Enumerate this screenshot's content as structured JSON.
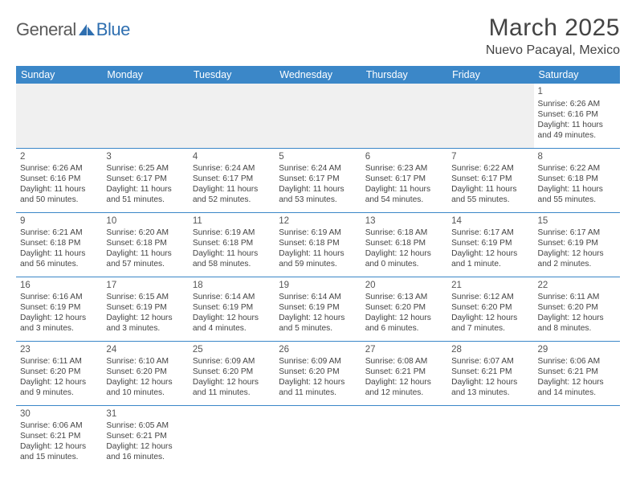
{
  "logo": {
    "text_general": "General",
    "text_blue": "Blue",
    "sail_color": "#2f6fb0"
  },
  "header": {
    "month_title": "March 2025",
    "location": "Nuevo Pacayal, Mexico"
  },
  "colors": {
    "header_bg": "#3b87c8",
    "header_text": "#ffffff",
    "row_border": "#3b87c8",
    "blank_row_bg": "#f0f0f0",
    "body_text": "#444444"
  },
  "weekdays": [
    "Sunday",
    "Monday",
    "Tuesday",
    "Wednesday",
    "Thursday",
    "Friday",
    "Saturday"
  ],
  "weeks": [
    [
      null,
      null,
      null,
      null,
      null,
      null,
      {
        "day": "1",
        "sunrise": "Sunrise: 6:26 AM",
        "sunset": "Sunset: 6:16 PM",
        "daylight": "Daylight: 11 hours and 49 minutes."
      }
    ],
    [
      {
        "day": "2",
        "sunrise": "Sunrise: 6:26 AM",
        "sunset": "Sunset: 6:16 PM",
        "daylight": "Daylight: 11 hours and 50 minutes."
      },
      {
        "day": "3",
        "sunrise": "Sunrise: 6:25 AM",
        "sunset": "Sunset: 6:17 PM",
        "daylight": "Daylight: 11 hours and 51 minutes."
      },
      {
        "day": "4",
        "sunrise": "Sunrise: 6:24 AM",
        "sunset": "Sunset: 6:17 PM",
        "daylight": "Daylight: 11 hours and 52 minutes."
      },
      {
        "day": "5",
        "sunrise": "Sunrise: 6:24 AM",
        "sunset": "Sunset: 6:17 PM",
        "daylight": "Daylight: 11 hours and 53 minutes."
      },
      {
        "day": "6",
        "sunrise": "Sunrise: 6:23 AM",
        "sunset": "Sunset: 6:17 PM",
        "daylight": "Daylight: 11 hours and 54 minutes."
      },
      {
        "day": "7",
        "sunrise": "Sunrise: 6:22 AM",
        "sunset": "Sunset: 6:17 PM",
        "daylight": "Daylight: 11 hours and 55 minutes."
      },
      {
        "day": "8",
        "sunrise": "Sunrise: 6:22 AM",
        "sunset": "Sunset: 6:18 PM",
        "daylight": "Daylight: 11 hours and 55 minutes."
      }
    ],
    [
      {
        "day": "9",
        "sunrise": "Sunrise: 6:21 AM",
        "sunset": "Sunset: 6:18 PM",
        "daylight": "Daylight: 11 hours and 56 minutes."
      },
      {
        "day": "10",
        "sunrise": "Sunrise: 6:20 AM",
        "sunset": "Sunset: 6:18 PM",
        "daylight": "Daylight: 11 hours and 57 minutes."
      },
      {
        "day": "11",
        "sunrise": "Sunrise: 6:19 AM",
        "sunset": "Sunset: 6:18 PM",
        "daylight": "Daylight: 11 hours and 58 minutes."
      },
      {
        "day": "12",
        "sunrise": "Sunrise: 6:19 AM",
        "sunset": "Sunset: 6:18 PM",
        "daylight": "Daylight: 11 hours and 59 minutes."
      },
      {
        "day": "13",
        "sunrise": "Sunrise: 6:18 AM",
        "sunset": "Sunset: 6:18 PM",
        "daylight": "Daylight: 12 hours and 0 minutes."
      },
      {
        "day": "14",
        "sunrise": "Sunrise: 6:17 AM",
        "sunset": "Sunset: 6:19 PM",
        "daylight": "Daylight: 12 hours and 1 minute."
      },
      {
        "day": "15",
        "sunrise": "Sunrise: 6:17 AM",
        "sunset": "Sunset: 6:19 PM",
        "daylight": "Daylight: 12 hours and 2 minutes."
      }
    ],
    [
      {
        "day": "16",
        "sunrise": "Sunrise: 6:16 AM",
        "sunset": "Sunset: 6:19 PM",
        "daylight": "Daylight: 12 hours and 3 minutes."
      },
      {
        "day": "17",
        "sunrise": "Sunrise: 6:15 AM",
        "sunset": "Sunset: 6:19 PM",
        "daylight": "Daylight: 12 hours and 3 minutes."
      },
      {
        "day": "18",
        "sunrise": "Sunrise: 6:14 AM",
        "sunset": "Sunset: 6:19 PM",
        "daylight": "Daylight: 12 hours and 4 minutes."
      },
      {
        "day": "19",
        "sunrise": "Sunrise: 6:14 AM",
        "sunset": "Sunset: 6:19 PM",
        "daylight": "Daylight: 12 hours and 5 minutes."
      },
      {
        "day": "20",
        "sunrise": "Sunrise: 6:13 AM",
        "sunset": "Sunset: 6:20 PM",
        "daylight": "Daylight: 12 hours and 6 minutes."
      },
      {
        "day": "21",
        "sunrise": "Sunrise: 6:12 AM",
        "sunset": "Sunset: 6:20 PM",
        "daylight": "Daylight: 12 hours and 7 minutes."
      },
      {
        "day": "22",
        "sunrise": "Sunrise: 6:11 AM",
        "sunset": "Sunset: 6:20 PM",
        "daylight": "Daylight: 12 hours and 8 minutes."
      }
    ],
    [
      {
        "day": "23",
        "sunrise": "Sunrise: 6:11 AM",
        "sunset": "Sunset: 6:20 PM",
        "daylight": "Daylight: 12 hours and 9 minutes."
      },
      {
        "day": "24",
        "sunrise": "Sunrise: 6:10 AM",
        "sunset": "Sunset: 6:20 PM",
        "daylight": "Daylight: 12 hours and 10 minutes."
      },
      {
        "day": "25",
        "sunrise": "Sunrise: 6:09 AM",
        "sunset": "Sunset: 6:20 PM",
        "daylight": "Daylight: 12 hours and 11 minutes."
      },
      {
        "day": "26",
        "sunrise": "Sunrise: 6:09 AM",
        "sunset": "Sunset: 6:20 PM",
        "daylight": "Daylight: 12 hours and 11 minutes."
      },
      {
        "day": "27",
        "sunrise": "Sunrise: 6:08 AM",
        "sunset": "Sunset: 6:21 PM",
        "daylight": "Daylight: 12 hours and 12 minutes."
      },
      {
        "day": "28",
        "sunrise": "Sunrise: 6:07 AM",
        "sunset": "Sunset: 6:21 PM",
        "daylight": "Daylight: 12 hours and 13 minutes."
      },
      {
        "day": "29",
        "sunrise": "Sunrise: 6:06 AM",
        "sunset": "Sunset: 6:21 PM",
        "daylight": "Daylight: 12 hours and 14 minutes."
      }
    ],
    [
      {
        "day": "30",
        "sunrise": "Sunrise: 6:06 AM",
        "sunset": "Sunset: 6:21 PM",
        "daylight": "Daylight: 12 hours and 15 minutes."
      },
      {
        "day": "31",
        "sunrise": "Sunrise: 6:05 AM",
        "sunset": "Sunset: 6:21 PM",
        "daylight": "Daylight: 12 hours and 16 minutes."
      },
      null,
      null,
      null,
      null,
      null
    ]
  ]
}
